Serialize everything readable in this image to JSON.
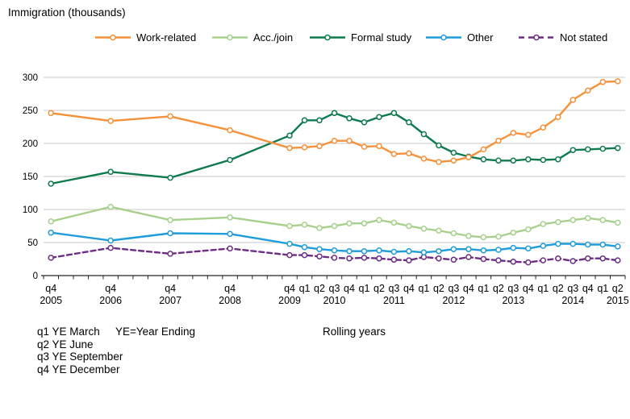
{
  "title": "Immigration (thousands)",
  "colors": {
    "work_related": "#F5913B",
    "acc_join": "#A6D08C",
    "formal_study": "#0E7A4E",
    "other": "#1F9CD9",
    "not_stated": "#6C2D82",
    "gridline": "#C9C9C9",
    "axis": "#262626",
    "text": "#000000"
  },
  "legend": [
    {
      "label": "Work-related",
      "color": "#F5913B",
      "dashed": false
    },
    {
      "label": "Acc./join",
      "color": "#A6D08C",
      "dashed": false
    },
    {
      "label": "Formal study",
      "color": "#0E7A4E",
      "dashed": false
    },
    {
      "label": "Other",
      "color": "#1F9CD9",
      "dashed": false
    },
    {
      "label": "Not stated",
      "color": "#6C2D82",
      "dashed": true
    }
  ],
  "footnotes": {
    "lines": [
      "q1 YE March",
      "q2 YE June",
      "q3 YE September",
      "q4 YE December"
    ],
    "ye_note": "YE=Year Ending",
    "rolling_years": "Rolling years"
  },
  "chart_data": {
    "type": "line",
    "title": "Immigration (thousands)",
    "xlabel": "",
    "ylabel": "Immigration (thousands)",
    "ylim": [
      0,
      300
    ],
    "y_ticks": [
      0,
      50,
      100,
      150,
      200,
      250,
      300
    ],
    "grid": "horizontal",
    "legend_position": "top",
    "x_slot_count": 39,
    "categories": [
      "q4 2005",
      "q4 2006",
      "q4 2007",
      "q4 2008",
      "q4 2009",
      "q1 2010",
      "q2 2010",
      "q3 2010",
      "q4 2010",
      "q1 2011",
      "q2 2011",
      "q3 2011",
      "q4 2011",
      "q1 2012",
      "q2 2012",
      "q3 2012",
      "q4 2012",
      "q1 2013",
      "q2 2013",
      "q3 2013",
      "q4 2013",
      "q1 2014",
      "q2 2014",
      "q3 2014",
      "q4 2014",
      "q1 2015",
      "q2 2015"
    ],
    "x_slots": [
      0,
      4,
      8,
      12,
      16,
      17,
      18,
      19,
      20,
      21,
      22,
      23,
      24,
      25,
      26,
      27,
      28,
      29,
      30,
      31,
      32,
      33,
      34,
      35,
      36,
      37,
      38
    ],
    "x_year_labels": [
      {
        "slot": 0,
        "text": "2005"
      },
      {
        "slot": 4,
        "text": "2006"
      },
      {
        "slot": 8,
        "text": "2007"
      },
      {
        "slot": 12,
        "text": "2008"
      },
      {
        "slot": 16,
        "text": "2009"
      },
      {
        "slot": 19,
        "text": "2010"
      },
      {
        "slot": 23,
        "text": "2011"
      },
      {
        "slot": 27,
        "text": "2012"
      },
      {
        "slot": 31,
        "text": "2013"
      },
      {
        "slot": 35,
        "text": "2014"
      },
      {
        "slot": 38,
        "text": "2015"
      }
    ],
    "series": [
      {
        "name": "Work-related",
        "color": "#F5913B",
        "dashed": false,
        "values": [
          246,
          234,
          241,
          220,
          193,
          194,
          196,
          204,
          204,
          195,
          196,
          184,
          185,
          177,
          172,
          174,
          179,
          191,
          204,
          216,
          213,
          224,
          240,
          266,
          280,
          293,
          294
        ]
      },
      {
        "name": "Acc./join",
        "color": "#A6D08C",
        "dashed": false,
        "values": [
          82,
          104,
          84,
          88,
          75,
          77,
          72,
          75,
          79,
          79,
          84,
          80,
          75,
          71,
          68,
          64,
          60,
          58,
          59,
          65,
          70,
          78,
          81,
          84,
          87,
          84,
          80
        ]
      },
      {
        "name": "Formal study",
        "color": "#0E7A4E",
        "dashed": false,
        "values": [
          139,
          157,
          148,
          175,
          212,
          235,
          235,
          246,
          238,
          232,
          240,
          246,
          232,
          214,
          197,
          186,
          180,
          176,
          174,
          174,
          176,
          175,
          176,
          190,
          191,
          192,
          193
        ]
      },
      {
        "name": "Other",
        "color": "#1F9CD9",
        "dashed": false,
        "values": [
          65,
          53,
          64,
          63,
          48,
          43,
          40,
          38,
          37,
          37,
          38,
          36,
          37,
          35,
          37,
          40,
          40,
          38,
          39,
          42,
          41,
          45,
          48,
          48,
          47,
          47,
          44
        ]
      },
      {
        "name": "Not stated",
        "color": "#6C2D82",
        "dashed": true,
        "values": [
          27,
          42,
          33,
          41,
          31,
          31,
          29,
          27,
          26,
          27,
          26,
          24,
          23,
          28,
          26,
          24,
          28,
          25,
          23,
          21,
          20,
          23,
          26,
          22,
          26,
          26,
          23
        ]
      }
    ]
  }
}
